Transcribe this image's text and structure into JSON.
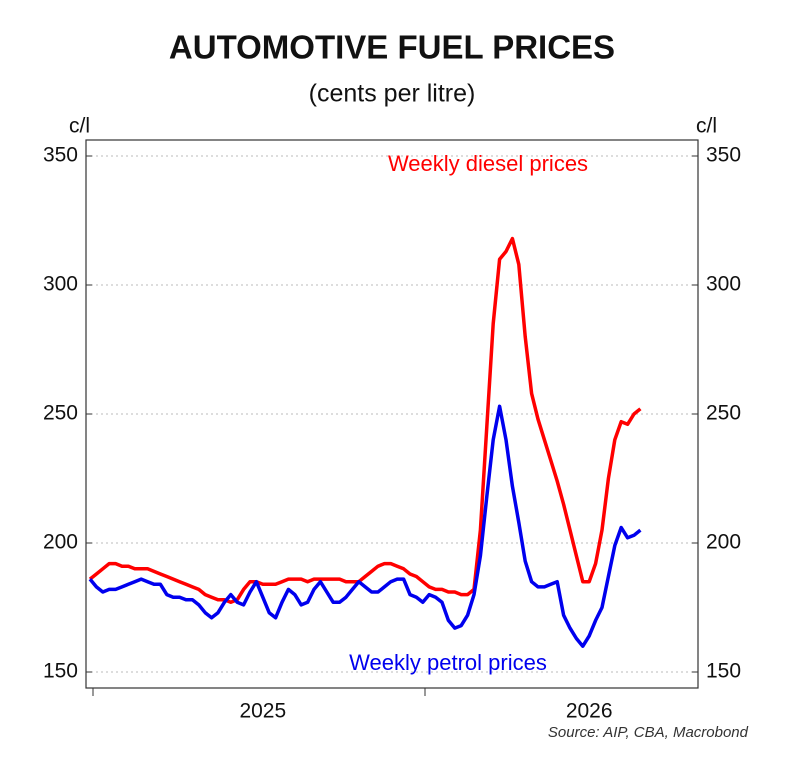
{
  "chart_data": {
    "type": "line",
    "title": "AUTOMOTIVE FUEL PRICES",
    "subtitle": "(cents per litre)",
    "y_label": "c/l",
    "source": "Source: AIP, CBA, Macrobond",
    "categories": [
      null,
      null,
      null,
      null,
      null,
      null,
      null,
      null,
      null,
      null,
      null,
      null,
      null,
      null,
      null,
      null,
      null,
      null,
      null,
      null,
      null,
      null,
      null,
      null,
      null,
      null,
      null,
      "2025",
      null,
      null,
      null,
      null,
      null,
      null,
      null,
      null,
      null,
      null,
      null,
      null,
      null,
      null,
      null,
      null,
      null,
      null,
      null,
      null,
      null,
      null,
      null,
      null,
      null,
      null,
      null,
      null,
      null,
      null,
      null,
      null,
      null,
      null,
      null,
      null,
      null,
      null,
      null,
      null,
      null,
      null,
      null,
      null,
      null,
      null,
      null,
      null,
      null,
      null,
      "2026",
      null,
      null,
      null,
      null,
      null,
      null,
      null,
      null
    ],
    "series": [
      {
        "name": "Weekly diesel prices",
        "color": "#ff0000",
        "values": [
          186,
          188,
          190,
          192,
          192,
          191,
          191,
          190,
          190,
          190,
          189,
          188,
          187,
          186,
          185,
          184,
          183,
          182,
          180,
          179,
          178,
          178,
          177,
          178,
          182,
          185,
          185,
          184,
          184,
          184,
          185,
          186,
          186,
          186,
          185,
          186,
          186,
          186,
          186,
          186,
          185,
          185,
          185,
          187,
          189,
          191,
          192,
          192,
          191,
          190,
          188,
          187,
          185,
          183,
          182,
          182,
          181,
          181,
          180,
          180,
          182,
          205,
          245,
          285,
          310,
          313,
          318,
          308,
          280,
          258,
          248,
          240,
          232,
          224,
          215,
          205,
          195,
          185,
          185,
          192,
          205,
          225,
          240,
          247,
          246,
          250,
          252
        ]
      },
      {
        "name": "Weekly petrol prices",
        "color": "#0000ee",
        "values": [
          186,
          183,
          181,
          182,
          182,
          183,
          184,
          185,
          186,
          185,
          184,
          184,
          180,
          179,
          179,
          178,
          178,
          176,
          173,
          171,
          173,
          177,
          180,
          177,
          176,
          181,
          185,
          179,
          173,
          171,
          177,
          182,
          180,
          176,
          177,
          182,
          185,
          181,
          177,
          177,
          179,
          182,
          185,
          183,
          181,
          181,
          183,
          185,
          186,
          186,
          180,
          179,
          177,
          180,
          179,
          177,
          170,
          167,
          168,
          172,
          180,
          195,
          218,
          240,
          253,
          240,
          222,
          208,
          193,
          185,
          183,
          183,
          184,
          185,
          172,
          167,
          163,
          160,
          164,
          170,
          175,
          187,
          199,
          206,
          202,
          203,
          205
        ]
      }
    ],
    "ylim": [
      143.8,
      356.2
    ],
    "yticks": [
      150,
      200,
      250,
      300,
      350
    ],
    "grid": true
  }
}
